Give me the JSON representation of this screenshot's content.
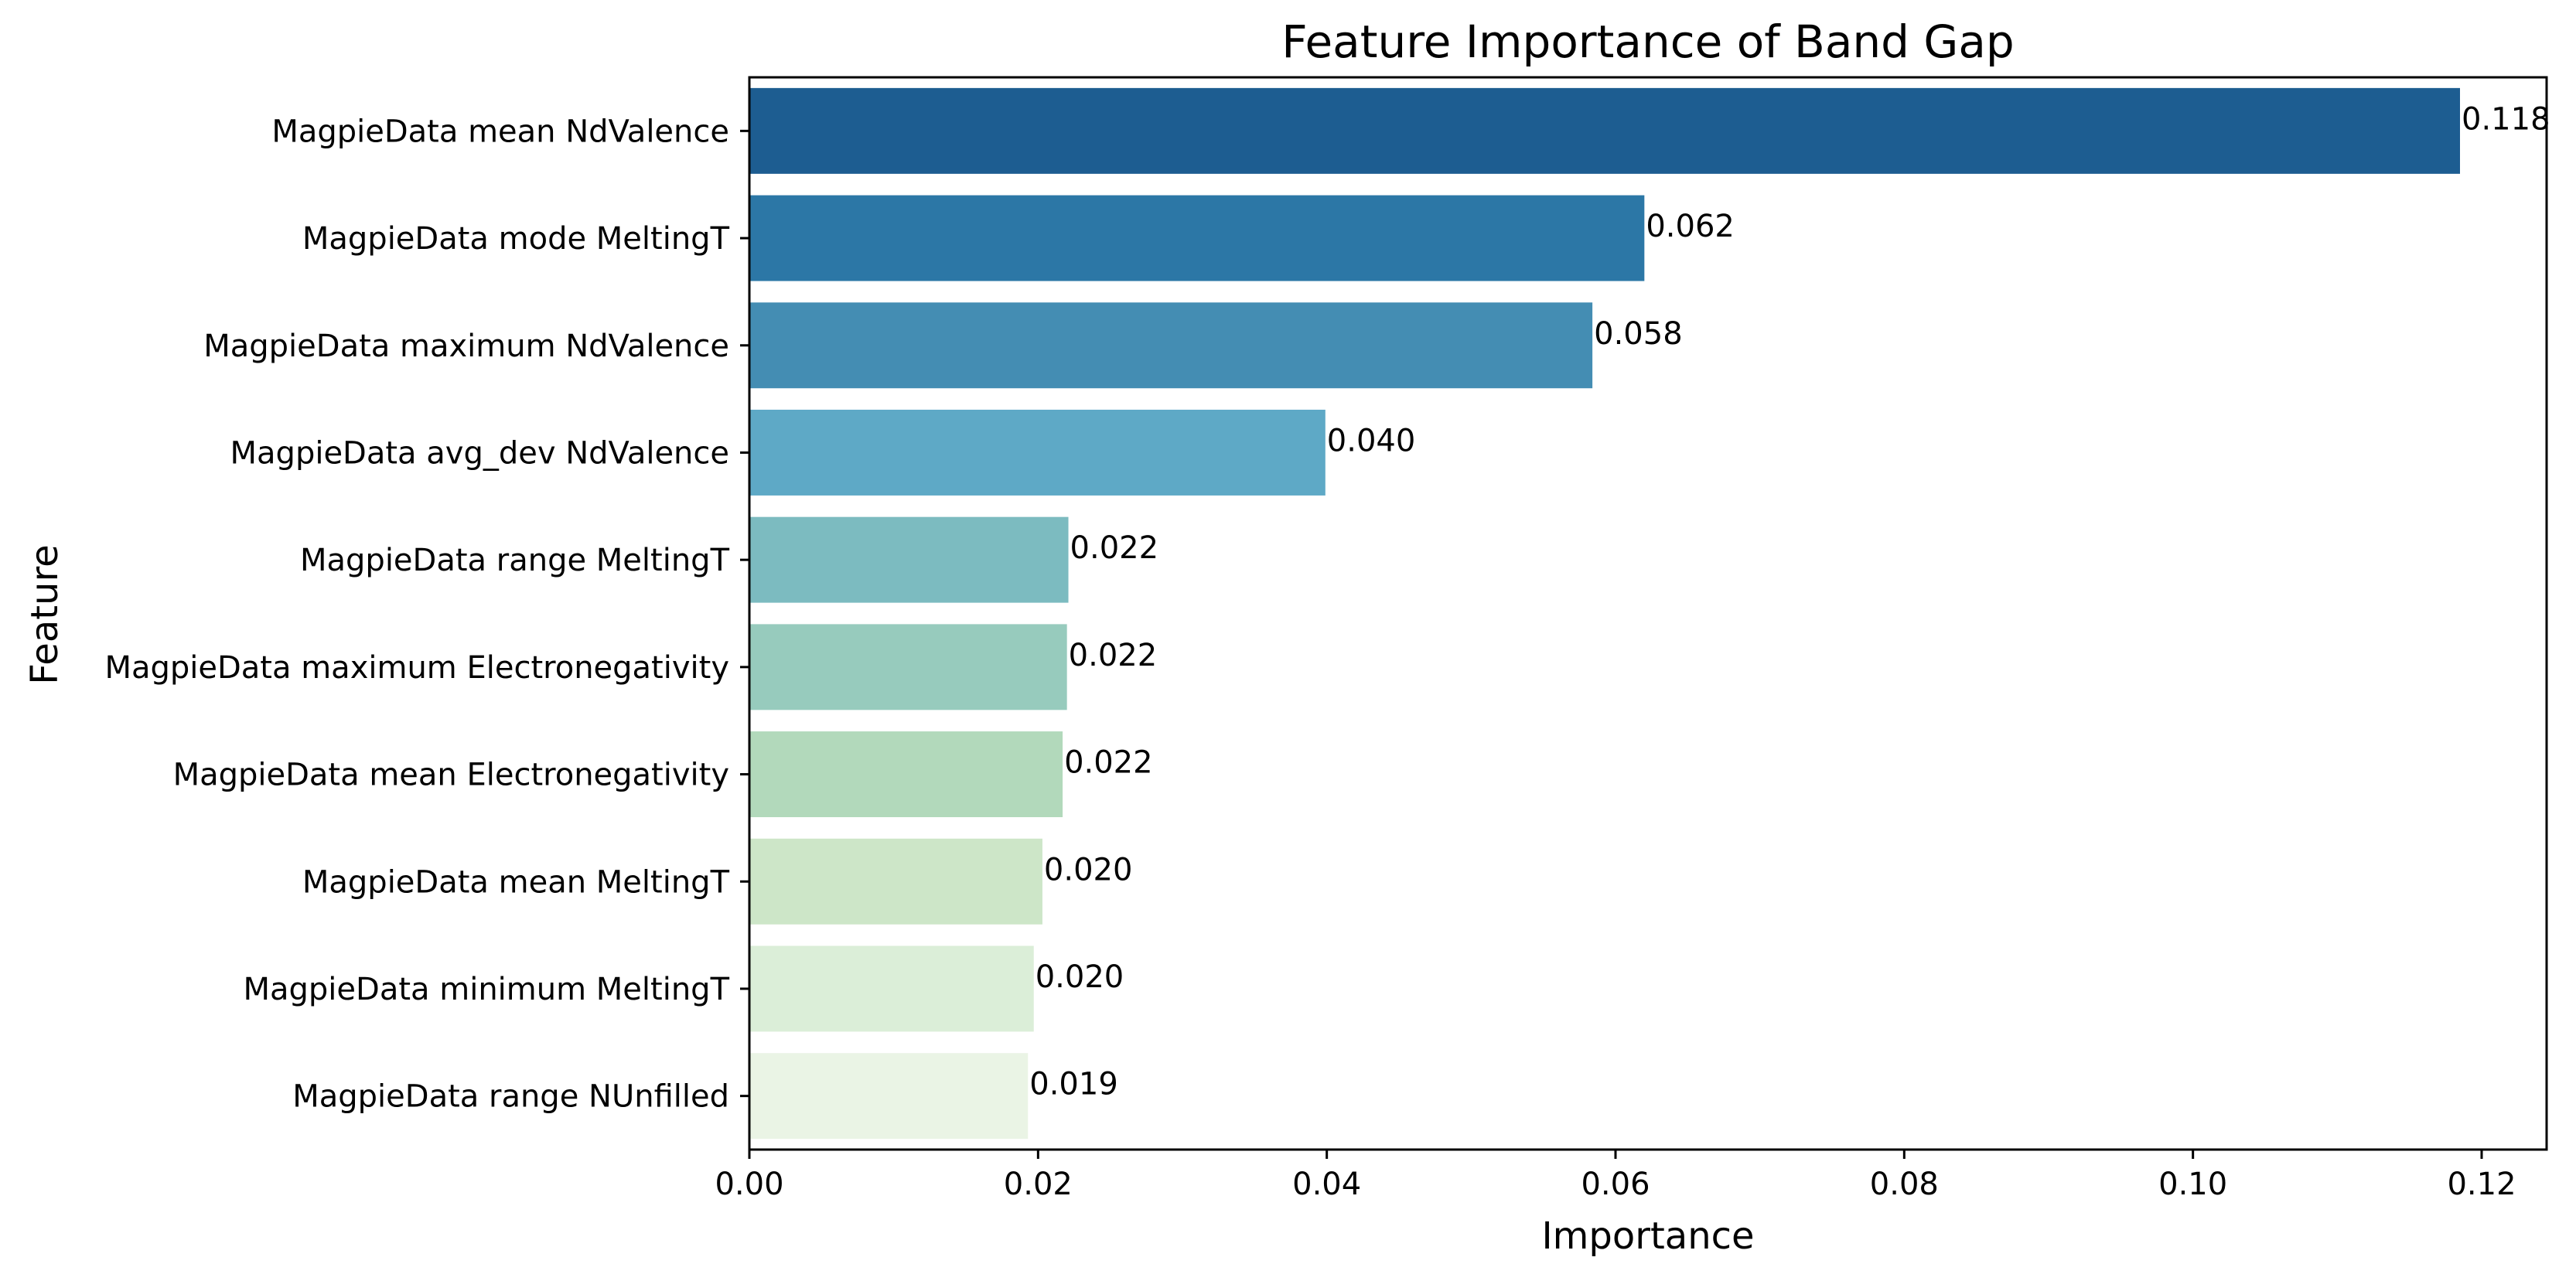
{
  "chart_data": {
    "type": "bar",
    "orientation": "horizontal",
    "title": "Feature Importance of Band Gap",
    "xlabel": "Importance",
    "ylabel": "Feature",
    "xlim": [
      0,
      0.1245
    ],
    "xticks": [
      "0.00",
      "0.02",
      "0.04",
      "0.06",
      "0.08",
      "0.10",
      "0.12"
    ],
    "xtick_values": [
      0,
      0.02,
      0.04,
      0.06,
      0.08,
      0.1,
      0.12
    ],
    "grid": false,
    "legend": "none",
    "categories": [
      "MagpieData mean NdValence",
      "MagpieData mode MeltingT",
      "MagpieData maximum NdValence",
      "MagpieData avg_dev NdValence",
      "MagpieData range MeltingT",
      "MagpieData maximum Electronegativity",
      "MagpieData mean Electronegativity",
      "MagpieData mean MeltingT",
      "MagpieData minimum MeltingT",
      "MagpieData range NUnfilled"
    ],
    "values": [
      0.1185,
      0.062,
      0.0584,
      0.0399,
      0.0221,
      0.022,
      0.0217,
      0.0203,
      0.0197,
      0.0193
    ],
    "data_labels": [
      "0.118",
      "0.062",
      "0.058",
      "0.040",
      "0.022",
      "0.022",
      "0.022",
      "0.020",
      "0.020",
      "0.019"
    ],
    "colors": [
      "#1d5d91",
      "#2c77a6",
      "#448db3",
      "#5ea9c6",
      "#7cbbc0",
      "#97cbbd",
      "#b2d9bb",
      "#cde6c8",
      "#dbeed8",
      "#eaf4e5"
    ]
  }
}
